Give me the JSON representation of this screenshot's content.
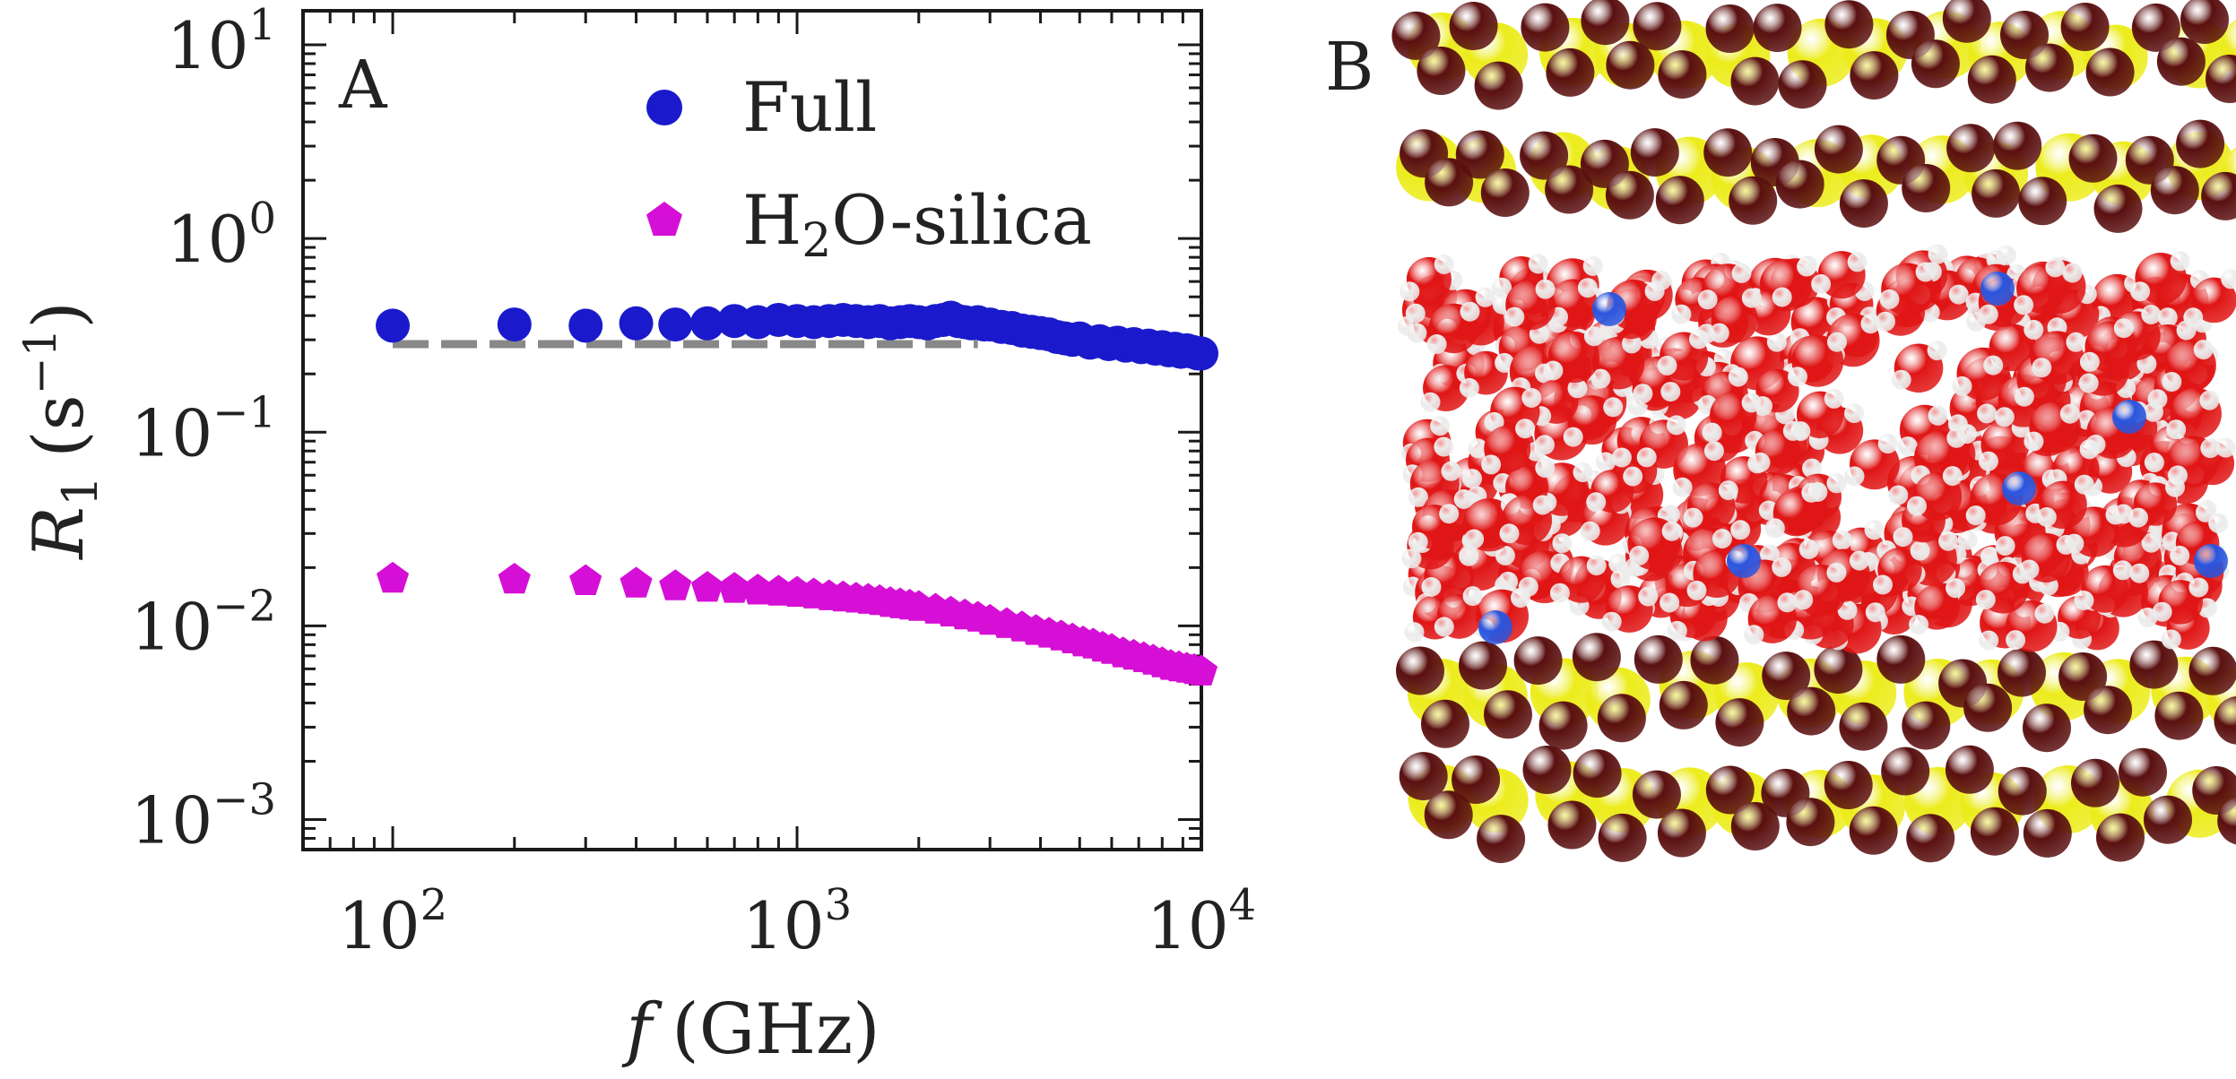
{
  "figure": {
    "panel_a_label": "A",
    "panel_b_label": "B"
  },
  "chart_data": {
    "type": "scatter",
    "xlabel": "f (GHz)",
    "xlabel_symbol": "f",
    "xlabel_unit": "(GHz)",
    "ylabel_symbol": "R",
    "ylabel_subscript": "1",
    "ylabel_unit_open": "(s",
    "ylabel_unit_sup": "−1",
    "ylabel_unit_close": ")",
    "x_scale": "log",
    "y_scale": "log",
    "xlim": [
      60,
      10000
    ],
    "ylim": [
      0.0007,
      15
    ],
    "x_ticks": [
      {
        "value": 100,
        "base": "10",
        "exp": "2"
      },
      {
        "value": 1000,
        "base": "10",
        "exp": "3"
      },
      {
        "value": 10000,
        "base": "10",
        "exp": "4"
      }
    ],
    "y_ticks": [
      {
        "value": 0.001,
        "base": "10",
        "exp": "−3"
      },
      {
        "value": 0.01,
        "base": "10",
        "exp": "−2"
      },
      {
        "value": 0.1,
        "base": "10",
        "exp": "−1"
      },
      {
        "value": 1,
        "base": "10",
        "exp": "0"
      },
      {
        "value": 10,
        "base": "10",
        "exp": "1"
      }
    ],
    "legend_position": "top-right",
    "series": [
      {
        "name": "Full",
        "marker": "circle",
        "color": "#1a1acc",
        "x": [
          100,
          200,
          300,
          400,
          500,
          600,
          700,
          800,
          900,
          1000,
          1100,
          1200,
          1300,
          1400,
          1500,
          1600,
          1700,
          1800,
          1900,
          2000,
          2100,
          2200,
          2300,
          2400,
          2500,
          2600,
          2700,
          2800,
          2900,
          3000,
          3200,
          3400,
          3600,
          3800,
          4000,
          4200,
          4400,
          4600,
          4800,
          5000,
          5300,
          5600,
          5900,
          6200,
          6500,
          6800,
          7100,
          7400,
          7700,
          8000,
          8300,
          8600,
          8900,
          9200,
          9500,
          9800,
          10000
        ],
        "y": [
          0.355,
          0.36,
          0.355,
          0.365,
          0.36,
          0.365,
          0.375,
          0.37,
          0.38,
          0.375,
          0.37,
          0.375,
          0.38,
          0.375,
          0.37,
          0.375,
          0.365,
          0.37,
          0.375,
          0.37,
          0.365,
          0.375,
          0.38,
          0.39,
          0.375,
          0.37,
          0.365,
          0.37,
          0.36,
          0.36,
          0.35,
          0.345,
          0.335,
          0.33,
          0.325,
          0.32,
          0.31,
          0.305,
          0.3,
          0.305,
          0.29,
          0.295,
          0.285,
          0.29,
          0.28,
          0.285,
          0.275,
          0.28,
          0.27,
          0.275,
          0.265,
          0.27,
          0.26,
          0.265,
          0.26,
          0.255,
          0.255
        ]
      },
      {
        "name": "H₂O-silica",
        "name_main": "H",
        "name_sub": "2",
        "name_rest": "O-silica",
        "marker": "pentagon",
        "color": "#d60fd6",
        "x": [
          100,
          200,
          300,
          400,
          500,
          600,
          700,
          800,
          900,
          1000,
          1100,
          1200,
          1300,
          1400,
          1500,
          1600,
          1700,
          1800,
          1900,
          2000,
          2200,
          2400,
          2600,
          2800,
          3000,
          3300,
          3600,
          3900,
          4200,
          4500,
          4800,
          5100,
          5400,
          5700,
          6000,
          6400,
          6800,
          7200,
          7600,
          8000,
          8400,
          8800,
          9200,
          9600,
          10000
        ],
        "y": [
          0.0175,
          0.0173,
          0.017,
          0.0165,
          0.016,
          0.0157,
          0.0155,
          0.0152,
          0.015,
          0.0148,
          0.0145,
          0.0142,
          0.014,
          0.0138,
          0.0136,
          0.0134,
          0.0131,
          0.0129,
          0.0127,
          0.0125,
          0.0121,
          0.0117,
          0.0113,
          0.011,
          0.0106,
          0.0102,
          0.0098,
          0.0094,
          0.0091,
          0.0088,
          0.0085,
          0.0082,
          0.008,
          0.0077,
          0.0075,
          0.0072,
          0.007,
          0.0068,
          0.0066,
          0.0064,
          0.0062,
          0.0061,
          0.006,
          0.0059,
          0.0058
        ]
      }
    ],
    "reference_line": {
      "style": "dashed",
      "color": "#888888",
      "x": [
        100,
        2800
      ],
      "y": 0.285
    }
  },
  "colors": {
    "silicon": "#ecec1c",
    "bridging_oxygen": "#5a1010",
    "water_oxygen": "#e01515",
    "hydrogen": "#ececec",
    "ion": "#2a55dd"
  }
}
